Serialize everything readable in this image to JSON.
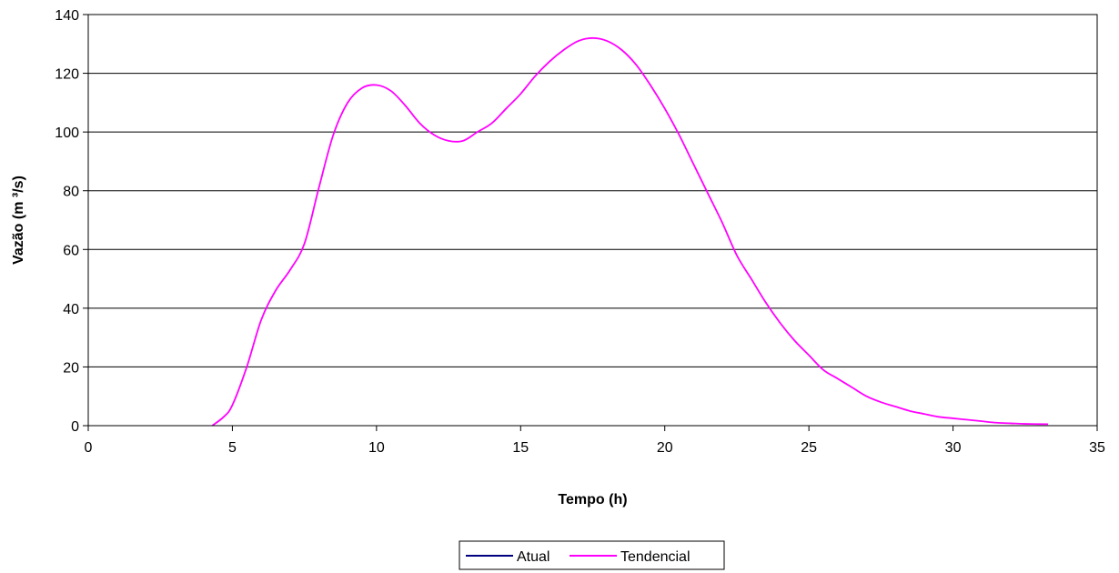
{
  "chart_data": {
    "type": "line",
    "title": "",
    "xlabel": "Tempo (h)",
    "ylabel": "Vazão (m ³/s)",
    "xlim": [
      0,
      35
    ],
    "ylim": [
      0,
      140
    ],
    "xticks": [
      0,
      5,
      10,
      15,
      20,
      25,
      30,
      35
    ],
    "yticks": [
      0,
      20,
      40,
      60,
      80,
      100,
      120,
      140
    ],
    "grid": "horizontal",
    "legend_position": "bottom",
    "series": [
      {
        "name": "Atual",
        "color": "#000080",
        "x": [],
        "y": []
      },
      {
        "name": "Tendencial",
        "color": "#ff00ff",
        "x": [
          4.3,
          4.7,
          5.0,
          5.5,
          6.0,
          6.5,
          7.0,
          7.5,
          8.0,
          8.5,
          9.0,
          9.5,
          10.0,
          10.5,
          11.0,
          11.5,
          12.0,
          12.5,
          13.0,
          13.5,
          14.0,
          14.5,
          15.0,
          15.5,
          16.0,
          16.5,
          17.0,
          17.5,
          18.0,
          18.5,
          19.0,
          19.5,
          20.0,
          20.5,
          21.0,
          21.5,
          22.0,
          22.5,
          23.0,
          23.5,
          24.0,
          24.5,
          25.0,
          25.5,
          26.0,
          26.5,
          27.0,
          27.5,
          28.0,
          28.5,
          29.0,
          29.5,
          30.0,
          30.5,
          31.0,
          31.5,
          32.0,
          32.5,
          33.3
        ],
        "y": [
          0,
          3,
          7,
          20,
          36,
          46,
          53,
          62,
          81,
          99,
          110,
          115,
          116,
          114,
          109,
          103,
          99,
          97,
          97,
          100,
          103,
          108,
          113,
          119,
          124,
          128,
          131,
          132,
          131,
          128,
          123,
          116,
          108,
          99,
          89,
          79,
          69,
          58,
          50,
          42,
          35,
          29,
          24,
          19,
          16,
          13,
          10,
          8,
          6.5,
          5,
          4,
          3,
          2.5,
          2,
          1.5,
          1,
          0.8,
          0.6,
          0.5
        ]
      }
    ]
  }
}
